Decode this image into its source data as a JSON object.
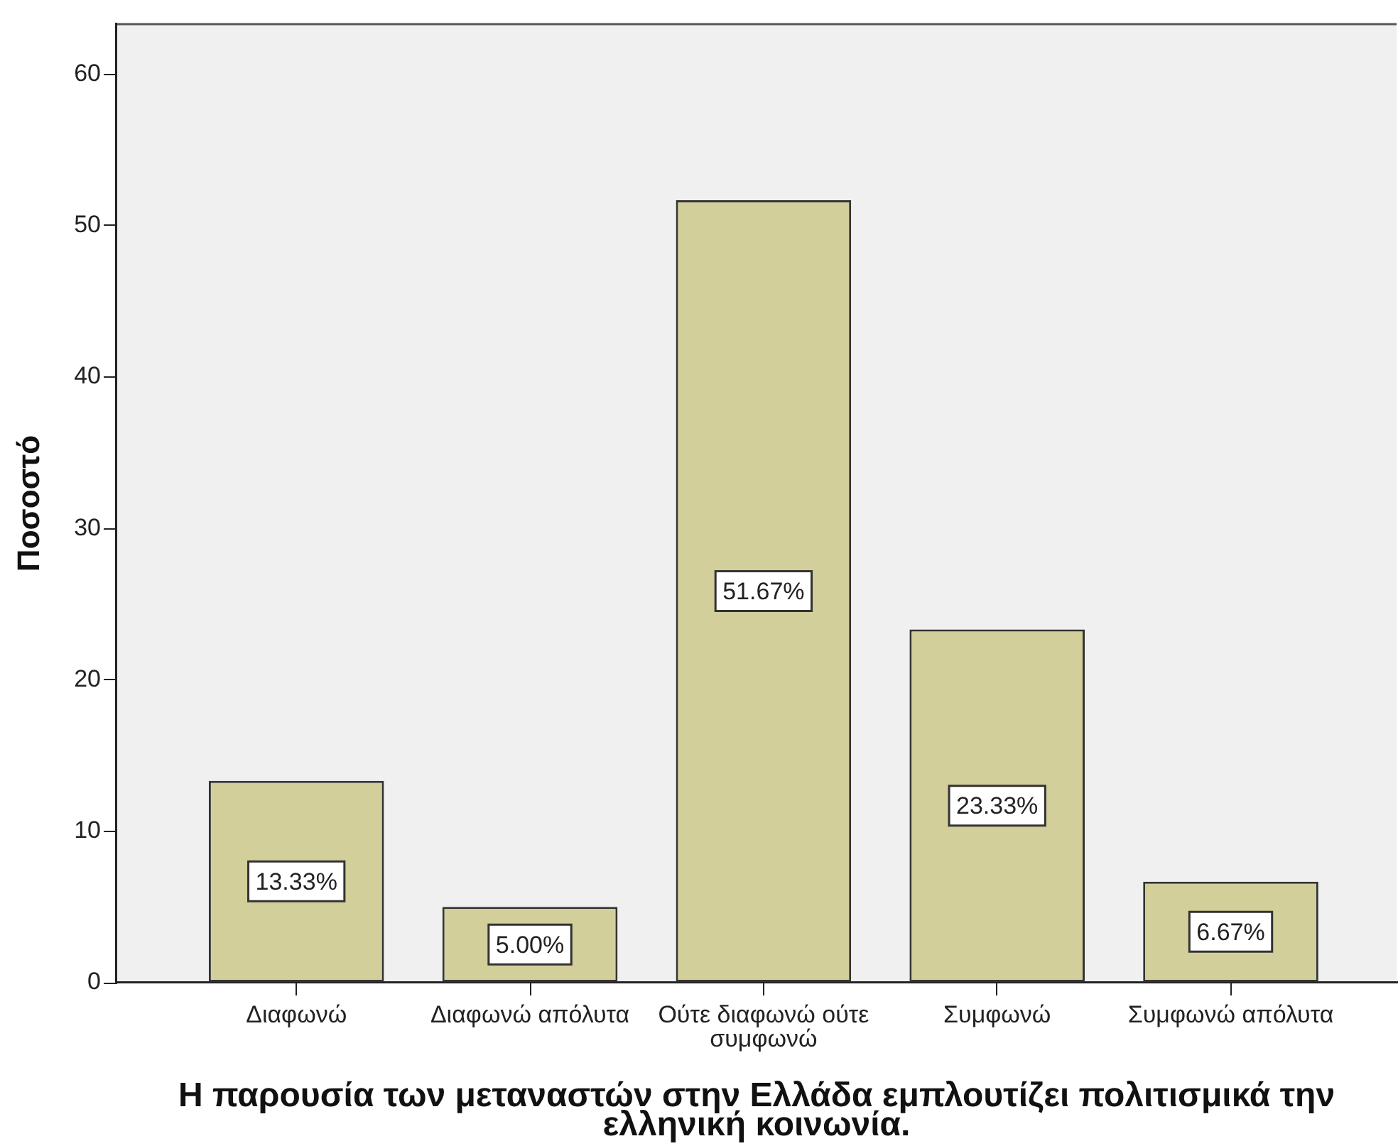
{
  "chart_data": {
    "type": "bar",
    "xlabel": "Η παρουσία των μεταναστών στην Ελλάδα εμπλουτίζει πολιτισμικά την ελληνική κοινωνία.",
    "ylabel": "Ποσοστό",
    "categories": [
      "Διαφωνώ",
      "Διαφωνώ απόλυτα",
      "Ούτε διαφωνώ ούτε συμφωνώ",
      "Συμφωνώ",
      "Συμφωνώ απόλυτα"
    ],
    "values": [
      13.33,
      5.0,
      51.67,
      23.33,
      6.67
    ],
    "value_labels": [
      "13.33%",
      "5.00%",
      "51.67%",
      "23.33%",
      "6.67%"
    ],
    "color": "#d3cf9a",
    "ylim": [
      0,
      63.3
    ],
    "yticks": [
      0,
      10,
      20,
      30,
      40,
      50,
      60
    ]
  }
}
